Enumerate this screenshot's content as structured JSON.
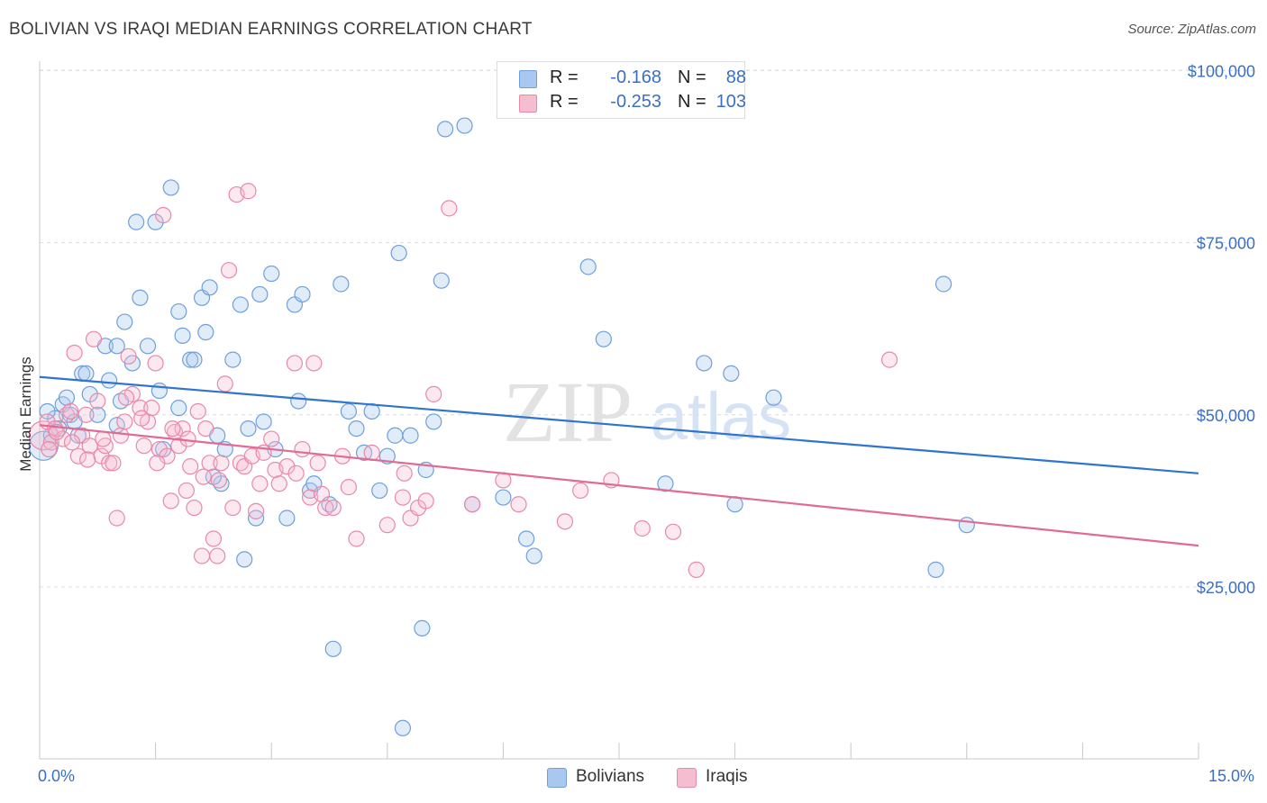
{
  "header": {
    "title": "BOLIVIAN VS IRAQI MEDIAN EARNINGS CORRELATION CHART",
    "source": "Source: ZipAtlas.com"
  },
  "watermark": {
    "zip": "ZIP",
    "atlas": "atlas"
  },
  "legend": {
    "rows": [
      {
        "r_label": "R =",
        "r_value": "-0.168",
        "n_label": "N =",
        "n_value": "88",
        "color": "#a9c8ef",
        "stroke": "#6e9fdc",
        "text_color": "#3b6fc4"
      },
      {
        "r_label": "R =",
        "r_value": "-0.253",
        "n_label": "N =",
        "n_value": "103",
        "color": "#f6bcd0",
        "stroke": "#e889a8",
        "text_color": "#3b6fc4"
      }
    ]
  },
  "bottom_legend": [
    {
      "label": "Bolivians",
      "color": "#a9c8ef",
      "stroke": "#6e9fdc"
    },
    {
      "label": "Iraqis",
      "color": "#f6bcd0",
      "stroke": "#e889a8"
    }
  ],
  "axes": {
    "x_min_label": "0.0%",
    "x_max_label": "15.0%",
    "y_title": "Median Earnings"
  },
  "chart_data": {
    "type": "scatter",
    "title": "BOLIVIAN VS IRAQI MEDIAN EARNINGS CORRELATION CHART",
    "xlabel": "",
    "ylabel": "Median Earnings",
    "xlim": [
      0,
      15
    ],
    "ylim": [
      0,
      105000
    ],
    "x_unit": "%",
    "y_ticks": [
      25000,
      50000,
      75000,
      100000
    ],
    "y_tick_labels": [
      "$25,000",
      "$50,000",
      "$75,000",
      "$100,000"
    ],
    "grid": "horizontal dashed",
    "legend_position": "top-center",
    "series": [
      {
        "name": "Bolivians",
        "color": "#6e9fdc",
        "trend": {
          "x": [
            0,
            15
          ],
          "y": [
            55500,
            41500
          ]
        },
        "points": [
          [
            0.05,
            45500
          ],
          [
            0.15,
            47000
          ],
          [
            0.2,
            49500
          ],
          [
            0.3,
            51500
          ],
          [
            0.35,
            52500
          ],
          [
            0.4,
            50000
          ],
          [
            0.45,
            49000
          ],
          [
            0.5,
            47000
          ],
          [
            0.55,
            56000
          ],
          [
            0.6,
            56000
          ],
          [
            0.65,
            53000
          ],
          [
            0.75,
            50000
          ],
          [
            0.85,
            60000
          ],
          [
            0.9,
            55000
          ],
          [
            1.0,
            60000
          ],
          [
            1.05,
            52000
          ],
          [
            1.1,
            63500
          ],
          [
            1.2,
            57500
          ],
          [
            1.25,
            78000
          ],
          [
            1.3,
            67000
          ],
          [
            1.4,
            60000
          ],
          [
            1.5,
            78000
          ],
          [
            1.55,
            53500
          ],
          [
            1.6,
            45000
          ],
          [
            1.7,
            83000
          ],
          [
            1.8,
            51000
          ],
          [
            1.8,
            65000
          ],
          [
            1.85,
            61500
          ],
          [
            1.95,
            58000
          ],
          [
            2.0,
            58000
          ],
          [
            2.1,
            67000
          ],
          [
            2.15,
            62000
          ],
          [
            2.2,
            68500
          ],
          [
            2.3,
            47000
          ],
          [
            2.35,
            40000
          ],
          [
            2.4,
            45000
          ],
          [
            2.5,
            58000
          ],
          [
            2.6,
            66000
          ],
          [
            2.65,
            29000
          ],
          [
            2.7,
            48000
          ],
          [
            2.8,
            35000
          ],
          [
            2.85,
            67500
          ],
          [
            2.9,
            49000
          ],
          [
            3.0,
            70500
          ],
          [
            3.05,
            45000
          ],
          [
            3.2,
            35000
          ],
          [
            3.3,
            66000
          ],
          [
            3.35,
            52000
          ],
          [
            3.4,
            67500
          ],
          [
            3.5,
            39000
          ],
          [
            3.55,
            40000
          ],
          [
            3.8,
            16000
          ],
          [
            3.9,
            69000
          ],
          [
            4.0,
            50500
          ],
          [
            4.1,
            48000
          ],
          [
            4.2,
            44500
          ],
          [
            4.3,
            50500
          ],
          [
            4.4,
            39000
          ],
          [
            4.5,
            44000
          ],
          [
            4.6,
            47000
          ],
          [
            4.65,
            73500
          ],
          [
            4.7,
            4500
          ],
          [
            4.8,
            47000
          ],
          [
            4.95,
            19000
          ],
          [
            5.1,
            49000
          ],
          [
            5.2,
            69500
          ],
          [
            5.25,
            91500
          ],
          [
            5.5,
            92000
          ],
          [
            5.6,
            37000
          ],
          [
            6.0,
            38000
          ],
          [
            6.3,
            32000
          ],
          [
            6.4,
            29500
          ],
          [
            7.1,
            71500
          ],
          [
            7.3,
            61000
          ],
          [
            8.1,
            40000
          ],
          [
            8.6,
            57500
          ],
          [
            8.95,
            56000
          ],
          [
            9.0,
            37000
          ],
          [
            9.5,
            52500
          ],
          [
            11.6,
            27500
          ],
          [
            11.7,
            69000
          ],
          [
            12.0,
            34000
          ],
          [
            0.1,
            50500
          ],
          [
            0.25,
            48000
          ],
          [
            1.0,
            48500
          ],
          [
            2.25,
            41000
          ],
          [
            3.75,
            37000
          ],
          [
            5.0,
            42000
          ]
        ]
      },
      {
        "name": "Iraqis",
        "color": "#e889a8",
        "trend": {
          "x": [
            0,
            15
          ],
          "y": [
            48500,
            31000
          ]
        },
        "points": [
          [
            0.05,
            47000
          ],
          [
            0.1,
            49000
          ],
          [
            0.15,
            46000
          ],
          [
            0.2,
            48000
          ],
          [
            0.3,
            46500
          ],
          [
            0.35,
            50000
          ],
          [
            0.4,
            50500
          ],
          [
            0.45,
            59000
          ],
          [
            0.5,
            44000
          ],
          [
            0.55,
            47000
          ],
          [
            0.6,
            50000
          ],
          [
            0.65,
            45500
          ],
          [
            0.7,
            61000
          ],
          [
            0.75,
            52000
          ],
          [
            0.8,
            44000
          ],
          [
            0.85,
            45500
          ],
          [
            0.9,
            43000
          ],
          [
            0.95,
            43000
          ],
          [
            1.0,
            35000
          ],
          [
            1.05,
            47000
          ],
          [
            1.1,
            49000
          ],
          [
            1.15,
            58500
          ],
          [
            1.2,
            53000
          ],
          [
            1.3,
            51000
          ],
          [
            1.35,
            45500
          ],
          [
            1.4,
            49000
          ],
          [
            1.45,
            51000
          ],
          [
            1.5,
            57500
          ],
          [
            1.55,
            45000
          ],
          [
            1.6,
            79000
          ],
          [
            1.65,
            44000
          ],
          [
            1.7,
            37500
          ],
          [
            1.75,
            47500
          ],
          [
            1.8,
            45500
          ],
          [
            1.85,
            48000
          ],
          [
            1.9,
            39000
          ],
          [
            1.95,
            42500
          ],
          [
            2.0,
            36500
          ],
          [
            2.05,
            50500
          ],
          [
            2.1,
            29500
          ],
          [
            2.15,
            48000
          ],
          [
            2.2,
            43000
          ],
          [
            2.25,
            32000
          ],
          [
            2.3,
            29500
          ],
          [
            2.35,
            43000
          ],
          [
            2.4,
            54500
          ],
          [
            2.45,
            71000
          ],
          [
            2.5,
            36500
          ],
          [
            2.55,
            82000
          ],
          [
            2.6,
            43000
          ],
          [
            2.65,
            42500
          ],
          [
            2.7,
            82500
          ],
          [
            2.75,
            44000
          ],
          [
            2.8,
            36000
          ],
          [
            2.85,
            40000
          ],
          [
            2.9,
            44500
          ],
          [
            3.0,
            46500
          ],
          [
            3.05,
            42000
          ],
          [
            3.1,
            40000
          ],
          [
            3.2,
            42500
          ],
          [
            3.3,
            57500
          ],
          [
            3.4,
            45000
          ],
          [
            3.5,
            38000
          ],
          [
            3.55,
            57500
          ],
          [
            3.6,
            43000
          ],
          [
            3.65,
            38500
          ],
          [
            3.7,
            36500
          ],
          [
            3.8,
            36500
          ],
          [
            4.0,
            39500
          ],
          [
            4.1,
            32000
          ],
          [
            4.3,
            44500
          ],
          [
            4.5,
            34000
          ],
          [
            4.7,
            38000
          ],
          [
            4.8,
            35000
          ],
          [
            4.9,
            36500
          ],
          [
            5.0,
            37500
          ],
          [
            5.1,
            53000
          ],
          [
            5.3,
            80000
          ],
          [
            5.6,
            37000
          ],
          [
            6.0,
            40500
          ],
          [
            6.8,
            34500
          ],
          [
            7.0,
            39000
          ],
          [
            7.4,
            40500
          ],
          [
            7.8,
            33500
          ],
          [
            8.2,
            33000
          ],
          [
            8.5,
            27500
          ],
          [
            11.0,
            58000
          ],
          [
            0.12,
            45000
          ],
          [
            0.22,
            47500
          ],
          [
            0.42,
            46000
          ],
          [
            0.62,
            43500
          ],
          [
            0.82,
            46500
          ],
          [
            1.12,
            52500
          ],
          [
            1.32,
            49500
          ],
          [
            1.52,
            43000
          ],
          [
            1.72,
            48000
          ],
          [
            1.92,
            46500
          ],
          [
            2.12,
            41000
          ],
          [
            2.32,
            40500
          ],
          [
            3.32,
            41500
          ],
          [
            3.92,
            44000
          ],
          [
            4.72,
            41500
          ],
          [
            6.2,
            37000
          ]
        ]
      }
    ]
  }
}
